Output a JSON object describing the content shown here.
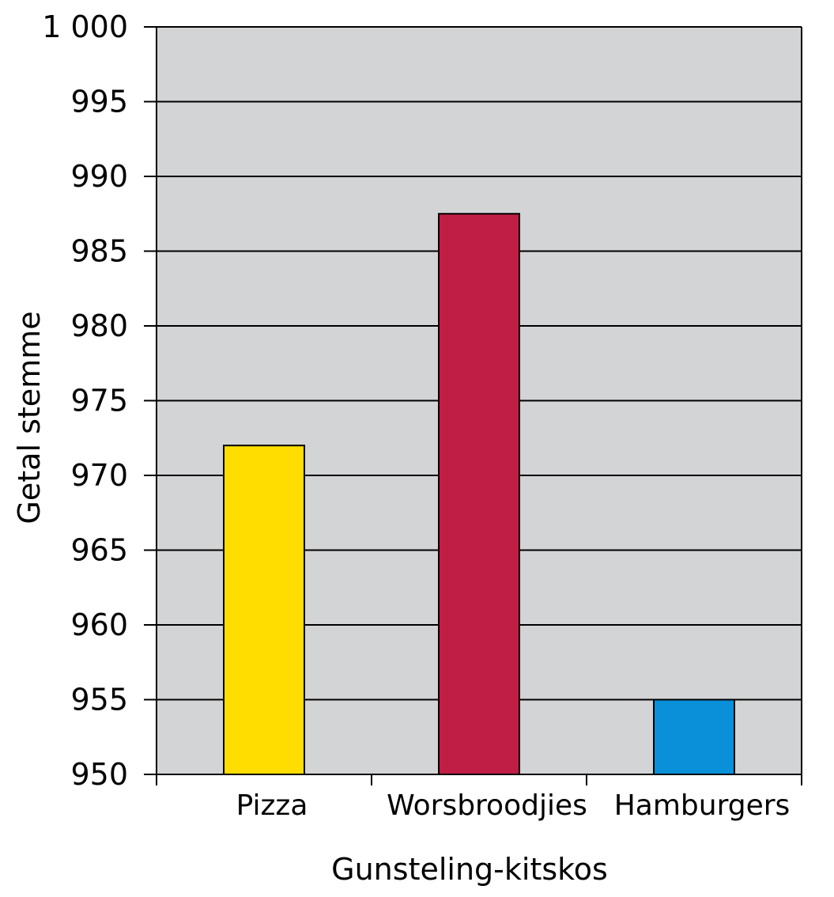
{
  "chart_data": {
    "type": "bar",
    "title": "",
    "xlabel": "Gunsteling-kitskos",
    "ylabel": "Getal stemme",
    "categories": [
      "Pizza",
      "Worsbroodjies",
      "Hamburgers"
    ],
    "values": [
      972,
      987.5,
      955
    ],
    "colors": [
      "#FFDD00",
      "#C01E44",
      "#0A90D8"
    ],
    "ylim": [
      950,
      1000
    ],
    "yticks": [
      950,
      955,
      960,
      965,
      970,
      975,
      980,
      985,
      990,
      995,
      1000
    ],
    "ytick_labels": [
      "950",
      "955",
      "960",
      "965",
      "970",
      "975",
      "980",
      "985",
      "990",
      "995",
      "1 000"
    ],
    "grid": true,
    "plot_background": "#D3D4D6"
  }
}
